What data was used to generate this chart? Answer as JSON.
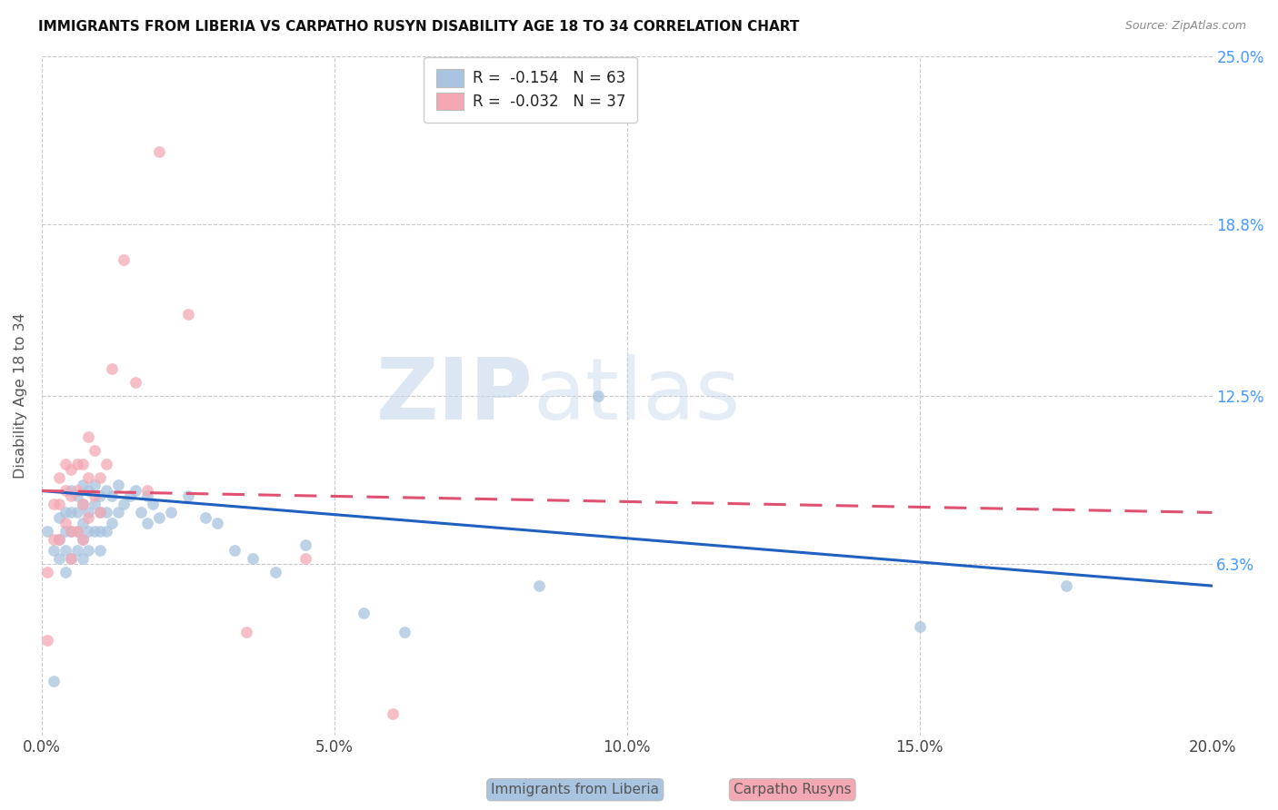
{
  "title": "IMMIGRANTS FROM LIBERIA VS CARPATHO RUSYN DISABILITY AGE 18 TO 34 CORRELATION CHART",
  "source": "Source: ZipAtlas.com",
  "ylabel": "Disability Age 18 to 34",
  "xlim": [
    0.0,
    0.2
  ],
  "ylim": [
    0.0,
    0.25
  ],
  "ytick_labels": [
    "6.3%",
    "12.5%",
    "18.8%",
    "25.0%"
  ],
  "ytick_values": [
    0.063,
    0.125,
    0.188,
    0.25
  ],
  "xtick_labels": [
    "0.0%",
    "5.0%",
    "10.0%",
    "15.0%",
    "20.0%"
  ],
  "xtick_values": [
    0.0,
    0.05,
    0.1,
    0.15,
    0.2
  ],
  "legend_blue_text": "R =  -0.154   N = 63",
  "legend_pink_text": "R =  -0.032   N = 37",
  "blue_scatter_color": "#a8c4e0",
  "pink_scatter_color": "#f4a8b4",
  "blue_line_color": "#2060c0",
  "pink_line_color": "#e05070",
  "watermark_zip": "ZIP",
  "watermark_atlas": "atlas",
  "blue_label": "Immigrants from Liberia",
  "pink_label": "Carpatho Rusyns",
  "blue_scatter_x": [
    0.001,
    0.002,
    0.002,
    0.003,
    0.003,
    0.003,
    0.004,
    0.004,
    0.004,
    0.004,
    0.005,
    0.005,
    0.005,
    0.005,
    0.006,
    0.006,
    0.006,
    0.006,
    0.007,
    0.007,
    0.007,
    0.007,
    0.007,
    0.008,
    0.008,
    0.008,
    0.008,
    0.009,
    0.009,
    0.009,
    0.01,
    0.01,
    0.01,
    0.01,
    0.011,
    0.011,
    0.011,
    0.012,
    0.012,
    0.013,
    0.013,
    0.014,
    0.015,
    0.016,
    0.017,
    0.018,
    0.018,
    0.019,
    0.02,
    0.022,
    0.025,
    0.028,
    0.03,
    0.033,
    0.036,
    0.04,
    0.045,
    0.055,
    0.062,
    0.085,
    0.095,
    0.15,
    0.175
  ],
  "blue_scatter_y": [
    0.075,
    0.02,
    0.068,
    0.08,
    0.072,
    0.065,
    0.082,
    0.075,
    0.068,
    0.06,
    0.09,
    0.082,
    0.075,
    0.065,
    0.088,
    0.082,
    0.075,
    0.068,
    0.092,
    0.085,
    0.078,
    0.072,
    0.065,
    0.09,
    0.082,
    0.075,
    0.068,
    0.092,
    0.085,
    0.075,
    0.088,
    0.082,
    0.075,
    0.068,
    0.09,
    0.082,
    0.075,
    0.088,
    0.078,
    0.092,
    0.082,
    0.085,
    0.088,
    0.09,
    0.082,
    0.088,
    0.078,
    0.085,
    0.08,
    0.082,
    0.088,
    0.08,
    0.078,
    0.068,
    0.065,
    0.06,
    0.07,
    0.045,
    0.038,
    0.055,
    0.125,
    0.04,
    0.055
  ],
  "pink_scatter_x": [
    0.001,
    0.001,
    0.002,
    0.002,
    0.003,
    0.003,
    0.003,
    0.004,
    0.004,
    0.004,
    0.005,
    0.005,
    0.005,
    0.005,
    0.006,
    0.006,
    0.006,
    0.007,
    0.007,
    0.007,
    0.008,
    0.008,
    0.008,
    0.009,
    0.009,
    0.01,
    0.01,
    0.011,
    0.012,
    0.014,
    0.016,
    0.018,
    0.02,
    0.025,
    0.035,
    0.045,
    0.06
  ],
  "pink_scatter_y": [
    0.06,
    0.035,
    0.085,
    0.072,
    0.095,
    0.085,
    0.072,
    0.1,
    0.09,
    0.078,
    0.098,
    0.088,
    0.075,
    0.065,
    0.1,
    0.09,
    0.075,
    0.1,
    0.085,
    0.072,
    0.11,
    0.095,
    0.08,
    0.105,
    0.088,
    0.095,
    0.082,
    0.1,
    0.135,
    0.175,
    0.13,
    0.09,
    0.215,
    0.155,
    0.038,
    0.065,
    0.008
  ]
}
